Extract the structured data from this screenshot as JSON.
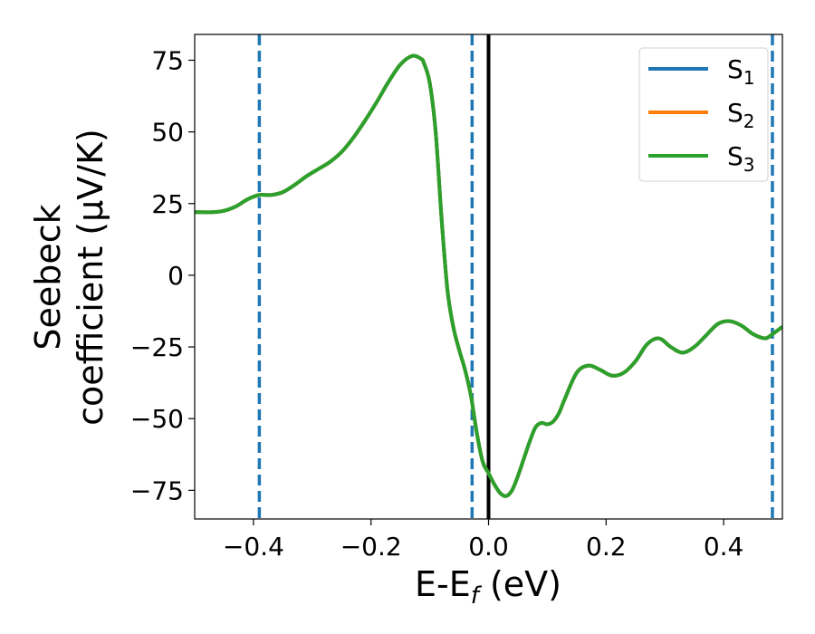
{
  "chart_data": {
    "type": "line",
    "xlabel": {
      "main": "E-E",
      "sub": "f",
      "rest": " (eV)"
    },
    "ylabel": {
      "line1": "Seebeck",
      "line2": "coefficient  (μV/K)"
    },
    "xlim": [
      -0.5,
      0.5
    ],
    "ylim": [
      -85,
      84
    ],
    "x_ticks": [
      -0.4,
      -0.2,
      0.0,
      0.2,
      0.4
    ],
    "x_tick_labels": [
      "−0.4",
      "−0.2",
      "0.0",
      "0.2",
      "0.4"
    ],
    "y_ticks": [
      75,
      50,
      25,
      0,
      -25,
      -50,
      -75
    ],
    "y_tick_labels": [
      "75",
      "50",
      "25",
      "0",
      "−25",
      "−50",
      "−75"
    ],
    "grid": false,
    "legend_position": "top-right",
    "colors": {
      "s1": "#1f77b4",
      "s2": "#ff7f0e",
      "s3": "#2ca02c",
      "fermi": "#000000"
    },
    "legend": [
      {
        "base": "S",
        "sub": "1",
        "color": "#1f77b4"
      },
      {
        "base": "S",
        "sub": "2",
        "color": "#ff7f0e"
      },
      {
        "base": "S",
        "sub": "3",
        "color": "#2ca02c"
      }
    ],
    "vertical_lines": [
      {
        "x": -0.39,
        "style": "dashed",
        "color": "#1f77b4"
      },
      {
        "x": -0.028,
        "style": "dashed",
        "color": "#1f77b4"
      },
      {
        "x": 0.0,
        "style": "solid",
        "color": "#000000"
      },
      {
        "x": 0.483,
        "style": "dashed",
        "color": "#1f77b4"
      }
    ],
    "x": [
      -0.5,
      -0.47,
      -0.45,
      -0.43,
      -0.41,
      -0.39,
      -0.37,
      -0.35,
      -0.33,
      -0.31,
      -0.29,
      -0.27,
      -0.25,
      -0.23,
      -0.21,
      -0.19,
      -0.17,
      -0.15,
      -0.13,
      -0.115,
      -0.11,
      -0.1,
      -0.09,
      -0.08,
      -0.07,
      -0.06,
      -0.05,
      -0.04,
      -0.03,
      -0.02,
      -0.01,
      0.0,
      0.01,
      0.02,
      0.03,
      0.04,
      0.05,
      0.06,
      0.07,
      0.08,
      0.09,
      0.1,
      0.11,
      0.12,
      0.13,
      0.15,
      0.17,
      0.19,
      0.21,
      0.23,
      0.25,
      0.27,
      0.29,
      0.31,
      0.33,
      0.35,
      0.37,
      0.39,
      0.41,
      0.43,
      0.45,
      0.47,
      0.48,
      0.49,
      0.5
    ],
    "series": [
      {
        "name": "S1",
        "values": [
          22,
          22,
          22.5,
          24,
          26.5,
          28,
          28,
          29,
          31.5,
          34.5,
          37,
          39.5,
          43,
          48,
          54,
          60.5,
          67.5,
          73.5,
          76.5,
          75.5,
          74,
          67,
          50,
          20,
          -5,
          -18,
          -26,
          -33,
          -42,
          -55,
          -65,
          -69,
          -73,
          -76,
          -77,
          -75,
          -70,
          -64,
          -58,
          -53,
          -51.5,
          -52,
          -51,
          -48,
          -43,
          -34,
          -31.5,
          -33,
          -35,
          -34,
          -30,
          -24,
          -22,
          -25,
          -27,
          -25,
          -21,
          -17,
          -16,
          -17.5,
          -20.5,
          -22,
          -21,
          -19.5,
          -18
        ]
      },
      {
        "name": "S2",
        "values": [
          22,
          22,
          22.5,
          24,
          26.5,
          28,
          28,
          29,
          31.5,
          34.5,
          37,
          39.5,
          43,
          48,
          54,
          60.5,
          67.5,
          73.5,
          76.5,
          75.5,
          74,
          67,
          50,
          20,
          -5,
          -18,
          -26,
          -33,
          -42,
          -55,
          -65,
          -69,
          -73,
          -76,
          -77,
          -75,
          -70,
          -64,
          -58,
          -53,
          -51.5,
          -52,
          -51,
          -48,
          -43,
          -34,
          -31.5,
          -33,
          -35,
          -34,
          -30,
          -24,
          -22,
          -25,
          -27,
          -25,
          -21,
          -17,
          -16,
          -17.5,
          -20.5,
          -22,
          -21,
          -19.5,
          -18
        ]
      },
      {
        "name": "S3",
        "values": [
          22,
          22,
          22.5,
          24,
          26.5,
          28,
          28,
          29,
          31.5,
          34.5,
          37,
          39.5,
          43,
          48,
          54,
          60.5,
          67.5,
          73.5,
          76.5,
          75.5,
          74,
          67,
          50,
          20,
          -5,
          -18,
          -26,
          -33,
          -42,
          -55,
          -65,
          -69,
          -73,
          -76,
          -77,
          -75,
          -70,
          -64,
          -58,
          -53,
          -51.5,
          -52,
          -51,
          -48,
          -43,
          -34,
          -31.5,
          -33,
          -35,
          -34,
          -30,
          -24,
          -22,
          -25,
          -27,
          -25,
          -21,
          -17,
          -16,
          -17.5,
          -20.5,
          -22,
          -21,
          -19.5,
          -18
        ]
      }
    ]
  }
}
